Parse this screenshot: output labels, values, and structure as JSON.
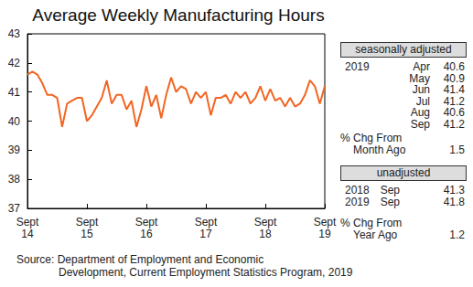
{
  "chart_data": {
    "type": "line",
    "title": "Average Weekly Manufacturing Hours",
    "categories": [
      "Sept\n14",
      null,
      null,
      null,
      null,
      null,
      null,
      null,
      null,
      null,
      null,
      null,
      "Sept\n15",
      null,
      null,
      null,
      null,
      null,
      null,
      null,
      null,
      null,
      null,
      null,
      "Sept\n16",
      null,
      null,
      null,
      null,
      null,
      null,
      null,
      null,
      null,
      null,
      null,
      "Sept\n17",
      null,
      null,
      null,
      null,
      null,
      null,
      null,
      null,
      null,
      null,
      null,
      "Sept\n18",
      null,
      null,
      null,
      null,
      null,
      null,
      null,
      null,
      null,
      null,
      null,
      "Sept\n19"
    ],
    "values": [
      41.6,
      41.7,
      41.6,
      41.3,
      40.9,
      40.9,
      40.8,
      39.8,
      40.6,
      40.7,
      40.8,
      40.8,
      40.0,
      40.2,
      40.5,
      40.8,
      41.4,
      40.6,
      40.9,
      40.9,
      40.4,
      40.7,
      39.8,
      40.4,
      41.2,
      40.5,
      40.9,
      40.1,
      40.9,
      41.5,
      41.0,
      41.2,
      41.1,
      40.6,
      41.0,
      40.8,
      41.0,
      40.2,
      40.8,
      40.8,
      40.9,
      40.6,
      41.0,
      40.8,
      41.0,
      40.6,
      40.8,
      41.2,
      40.7,
      41.1,
      40.7,
      40.8,
      40.5,
      40.8,
      40.5,
      40.6,
      40.9,
      41.4,
      41.2,
      40.6,
      41.2
    ],
    "color": "#f26522",
    "ylim": [
      37,
      43
    ],
    "yticks": [
      37,
      38,
      39,
      40,
      41,
      42,
      43
    ],
    "grid": false
  },
  "panel": {
    "seasonally_adjusted": {
      "heading": "seasonally adjusted",
      "year": "2019",
      "rows": [
        {
          "month": "Apr",
          "value": 40.6
        },
        {
          "month": "May",
          "value": 40.9
        },
        {
          "month": "Jun",
          "value": 41.4
        },
        {
          "month": "Jul",
          "value": 41.2
        },
        {
          "month": "Aug",
          "value": 40.6
        },
        {
          "month": "Sep",
          "value": 41.2
        }
      ],
      "change": {
        "label": [
          "% Chg From",
          "Month Ago"
        ],
        "value": 1.5
      }
    },
    "unadjusted": {
      "heading": "unadjusted",
      "rows": [
        {
          "year": "2018",
          "month": "Sep",
          "value": 41.3
        },
        {
          "year": "2019",
          "month": "Sep",
          "value": 41.8
        }
      ],
      "change": {
        "label": [
          "% Chg From",
          "Year Ago"
        ],
        "value": 1.2
      }
    }
  },
  "source": [
    "Source: Department of Employment and Economic",
    "Development, Current Employment Statistics Program, 2019"
  ]
}
